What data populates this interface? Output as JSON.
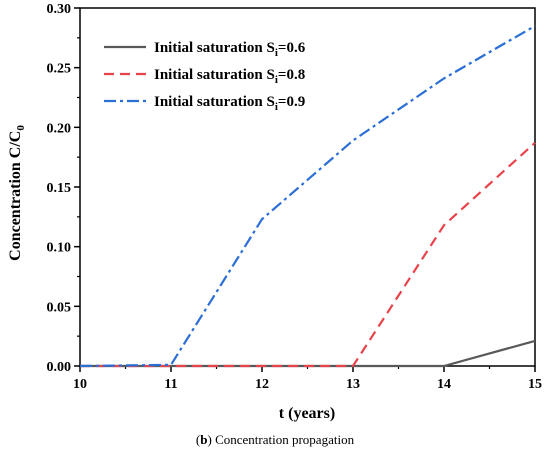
{
  "chart_data": {
    "type": "line",
    "xlabel": "t (years)",
    "ylabel_main": "Concentration C/C",
    "ylabel_sub": "0",
    "xlim": [
      10,
      15
    ],
    "ylim": [
      0,
      0.3
    ],
    "xticks": [
      "10",
      "11",
      "12",
      "13",
      "14",
      "15"
    ],
    "yticks": [
      "0.00",
      "0.05",
      "0.10",
      "0.15",
      "0.20",
      "0.25",
      "0.30"
    ],
    "legend_position": "top-left",
    "grid": false,
    "series": [
      {
        "legend_main": "Initial saturation S",
        "legend_sub": "i",
        "legend_tail": "=0.6",
        "color": "#595959",
        "dash": "solid",
        "x": [
          10,
          11,
          12,
          13,
          14,
          15
        ],
        "y": [
          0,
          0,
          0,
          0,
          0,
          0.021
        ]
      },
      {
        "legend_main": "Initial saturation S",
        "legend_sub": "i",
        "legend_tail": "=0.8",
        "color": "#e8434a",
        "dash": "dash",
        "x": [
          10,
          11,
          12,
          13,
          14,
          15
        ],
        "y": [
          0,
          0,
          0,
          0,
          0.118,
          0.187
        ]
      },
      {
        "legend_main": "Initial saturation S",
        "legend_sub": "i",
        "legend_tail": "=0.9",
        "color": "#2b6fd6",
        "dash": "dashdot",
        "x": [
          10,
          11,
          12,
          13,
          14,
          15
        ],
        "y": [
          0,
          0.001,
          0.123,
          0.189,
          0.241,
          0.285
        ]
      }
    ]
  },
  "caption": {
    "label": "b",
    "text": " Concentration propagation"
  }
}
